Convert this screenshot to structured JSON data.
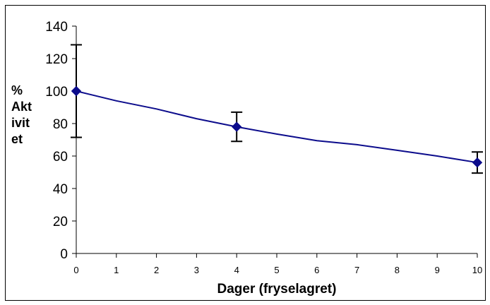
{
  "chart_data": {
    "type": "line",
    "title": "",
    "xlabel": "Dager (fryselagret)",
    "ylabel_lines": [
      "%",
      "Akt",
      "ivit",
      "et"
    ],
    "xlim": [
      0,
      10
    ],
    "ylim": [
      0,
      140
    ],
    "x_ticks": [
      0,
      1,
      2,
      3,
      4,
      5,
      6,
      7,
      8,
      9,
      10
    ],
    "y_ticks": [
      0,
      20,
      40,
      60,
      80,
      100,
      120,
      140
    ],
    "grid": false,
    "legend": "none",
    "series": [
      {
        "color": "#0c0c8c",
        "marker": "diamond",
        "x": [
          0,
          4,
          10
        ],
        "y": [
          100,
          78,
          56
        ],
        "error": [
          28.5,
          9,
          6.5
        ]
      }
    ],
    "trend_curve": {
      "x": [
        0,
        1,
        2,
        3,
        4,
        5,
        6,
        7,
        8,
        9,
        10
      ],
      "y": [
        100,
        94,
        89,
        83,
        78,
        73.5,
        69.5,
        67,
        63.5,
        60,
        56
      ]
    }
  }
}
